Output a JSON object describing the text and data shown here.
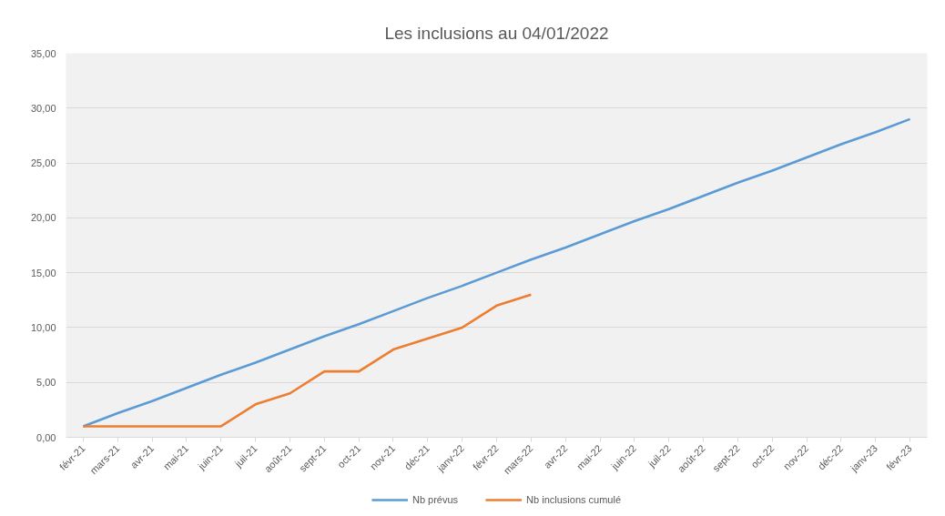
{
  "chart_data": {
    "type": "line",
    "title": "Les inclusions au 04/01/2022",
    "categories": [
      "févr-21",
      "mars-21",
      "avr-21",
      "mai-21",
      "juin-21",
      "juil-21",
      "août-21",
      "sept-21",
      "oct-21",
      "nov-21",
      "déc-21",
      "janv-22",
      "févr-22",
      "mars-22",
      "avr-22",
      "mai-22",
      "juin-22",
      "juil-22",
      "août-22",
      "sept-22",
      "oct-22",
      "nov-22",
      "déc-22",
      "janv-23",
      "févr-23"
    ],
    "series": [
      {
        "name": "Nb prévus",
        "color": "#5b9bd5",
        "values": [
          1.0,
          2.2,
          3.3,
          4.5,
          5.7,
          6.8,
          8.0,
          9.2,
          10.3,
          11.5,
          12.7,
          13.8,
          15.0,
          16.2,
          17.3,
          18.5,
          19.7,
          20.8,
          22.0,
          23.2,
          24.3,
          25.5,
          26.7,
          27.8,
          29.0
        ]
      },
      {
        "name": "Nb inclusions cumulé",
        "color": "#ed7d31",
        "values": [
          1,
          1,
          1,
          1,
          1,
          3,
          4,
          6,
          6,
          8,
          9,
          10,
          12,
          13,
          null,
          null,
          null,
          null,
          null,
          null,
          null,
          null,
          null,
          null,
          null
        ]
      }
    ],
    "ylim": [
      0,
      35
    ],
    "yticks": [
      {
        "value": 0,
        "label": "0,00"
      },
      {
        "value": 5,
        "label": "5,00"
      },
      {
        "value": 10,
        "label": "10,00"
      },
      {
        "value": 15,
        "label": "15,00"
      },
      {
        "value": 20,
        "label": "20,00"
      },
      {
        "value": 25,
        "label": "25,00"
      },
      {
        "value": 30,
        "label": "30,00"
      },
      {
        "value": 35,
        "label": "35,00"
      }
    ],
    "grid": "y",
    "legend": "bottom"
  }
}
